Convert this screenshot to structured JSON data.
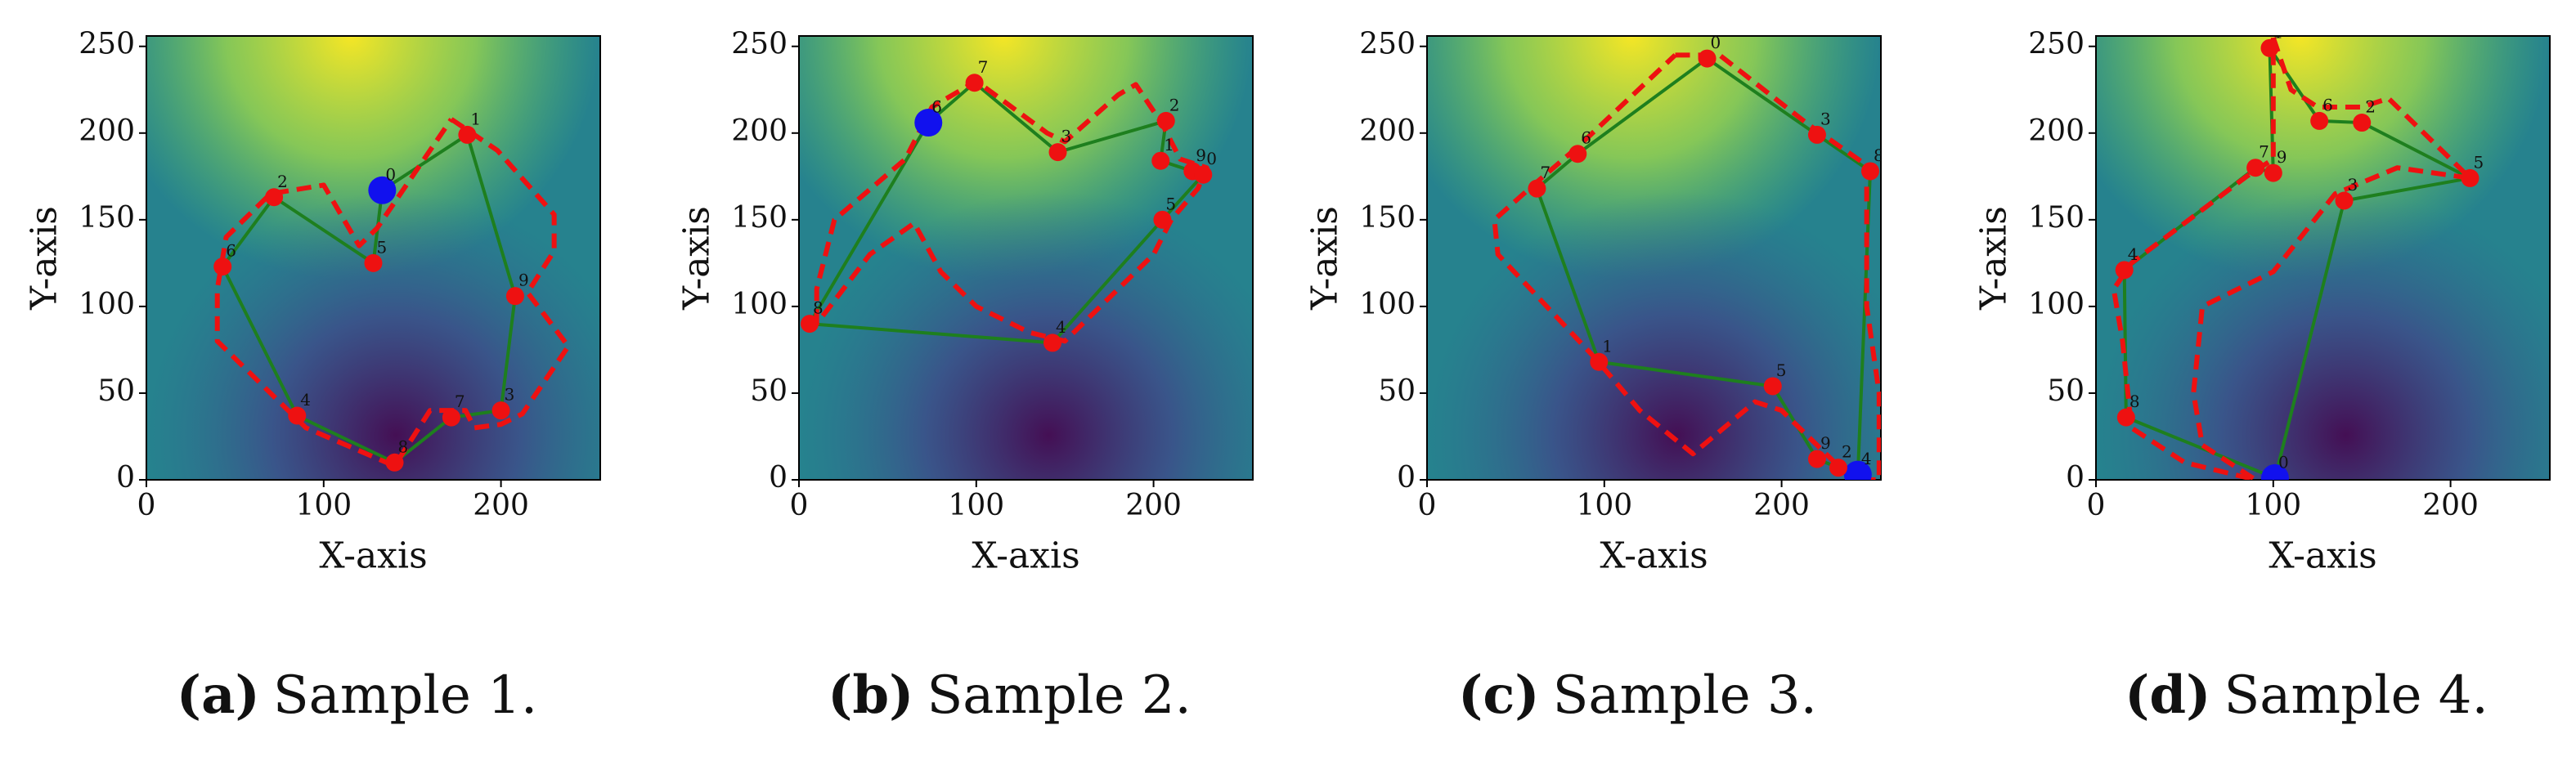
{
  "chart_data": [
    {
      "type": "scatter",
      "caption_label": "(a)",
      "caption": "Sample 1.",
      "xlabel": "X-axis",
      "ylabel": "Y-axis",
      "xlim": [
        0,
        256
      ],
      "ylim": [
        0,
        256
      ],
      "xticks": [
        0,
        100,
        200
      ],
      "yticks": [
        0,
        50,
        100,
        150,
        200,
        250
      ],
      "points": {
        "color": "#ee1111",
        "start_color": "#1111ee",
        "x": [
          133,
          128,
          72,
          43,
          85,
          140,
          172,
          200,
          208,
          181
        ],
        "y": [
          167,
          125,
          163,
          123,
          37,
          10,
          36,
          40,
          106,
          199
        ],
        "labels": [
          "0",
          "5",
          "2",
          "6",
          "4",
          "8",
          "7",
          "3",
          "9",
          "1"
        ]
      },
      "tour": {
        "color": "#1e7f1e",
        "closed": true
      },
      "route": {
        "color": "#ee1111",
        "dashed": true,
        "x": [
          172,
          198,
          230,
          230,
          215,
          238,
          212,
          200,
          185,
          180,
          160,
          140,
          90,
          40,
          40,
          45,
          70,
          100,
          120,
          130,
          172
        ],
        "y": [
          208,
          190,
          153,
          132,
          108,
          77,
          38,
          32,
          30,
          40,
          40,
          8,
          30,
          80,
          110,
          140,
          165,
          170,
          135,
          145,
          208
        ]
      }
    },
    {
      "type": "scatter",
      "caption_label": "(b)",
      "caption": "Sample 2.",
      "xlabel": "X-axis",
      "ylabel": "Y-axis",
      "xlim": [
        0,
        256
      ],
      "ylim": [
        0,
        256
      ],
      "xticks": [
        0,
        100,
        200
      ],
      "yticks": [
        0,
        50,
        100,
        150,
        200,
        250
      ],
      "points": {
        "color": "#ee1111",
        "start_color": "#1111ee",
        "x": [
          73,
          99,
          146,
          207,
          204,
          222,
          228,
          205,
          143,
          6
        ],
        "y": [
          206,
          229,
          189,
          207,
          184,
          178,
          176,
          150,
          79,
          90
        ],
        "labels": [
          "6",
          "7",
          "3",
          "2",
          "1",
          "9",
          "0",
          "5",
          "4",
          "8"
        ]
      },
      "tour": {
        "color": "#1e7f1e",
        "closed": true
      },
      "route": {
        "color": "#ee1111",
        "dashed": true,
        "x": [
          10,
          10,
          15,
          20,
          60,
          75,
          100,
          140,
          150,
          180,
          190,
          205,
          215,
          230,
          225,
          210,
          200,
          150,
          130,
          100,
          80,
          65,
          40,
          10
        ],
        "y": [
          90,
          110,
          130,
          150,
          185,
          215,
          230,
          200,
          195,
          222,
          228,
          205,
          185,
          180,
          168,
          150,
          130,
          80,
          85,
          100,
          120,
          148,
          130,
          90
        ]
      }
    },
    {
      "type": "scatter",
      "caption_label": "(c)",
      "caption": "Sample 3.",
      "xlabel": "X-axis",
      "ylabel": "Y-axis",
      "xlim": [
        0,
        256
      ],
      "ylim": [
        0,
        256
      ],
      "xticks": [
        0,
        100,
        200
      ],
      "yticks": [
        0,
        50,
        100,
        150,
        200,
        250
      ],
      "points": {
        "color": "#ee1111",
        "start_color": "#1111ee",
        "x": [
          243,
          250,
          220,
          158,
          85,
          62,
          97,
          195,
          220,
          232
        ],
        "y": [
          3,
          178,
          199,
          243,
          188,
          168,
          68,
          54,
          12,
          7
        ],
        "labels": [
          "4",
          "8",
          "3",
          "0",
          "6",
          "7",
          "1",
          "5",
          "9",
          "2"
        ]
      },
      "tour": {
        "color": "#1e7f1e",
        "closed": true
      },
      "route": {
        "color": "#ee1111",
        "dashed": true,
        "x": [
          140,
          165,
          215,
          250,
          248,
          248,
          255,
          255,
          240,
          200,
          185,
          150,
          120,
          95,
          40,
          38,
          60,
          85,
          140
        ],
        "y": [
          245,
          245,
          205,
          180,
          170,
          100,
          50,
          0,
          0,
          40,
          45,
          15,
          40,
          70,
          130,
          150,
          170,
          192,
          245
        ]
      }
    },
    {
      "type": "scatter",
      "caption_label": "(d)",
      "caption": "Sample 4.",
      "xlabel": "X-axis",
      "ylabel": "Y-axis",
      "xlim": [
        0,
        256
      ],
      "ylim": [
        0,
        256
      ],
      "xticks": [
        0,
        100,
        200
      ],
      "yticks": [
        0,
        50,
        100,
        150,
        200,
        250
      ],
      "points": {
        "color": "#ee1111",
        "start_color": "#1111ee",
        "x": [
          101,
          140,
          211,
          150,
          126,
          98,
          100,
          90,
          16,
          17
        ],
        "y": [
          1,
          161,
          174,
          206,
          207,
          249,
          177,
          180,
          121,
          36
        ],
        "labels": [
          "0",
          "3",
          "5",
          "2",
          "6",
          "1",
          "9",
          "7",
          "4",
          "8"
        ]
      },
      "tour": {
        "color": "#1e7f1e",
        "closed": true
      },
      "route": {
        "color": "#ee1111",
        "dashed": true,
        "x": [
          100,
          110,
          125,
          150,
          165,
          180,
          211,
          170,
          135,
          100,
          60,
          55,
          60,
          90,
          50,
          20,
          15,
          10,
          20,
          85,
          100,
          100,
          100
        ],
        "y": [
          255,
          225,
          215,
          215,
          220,
          205,
          174,
          180,
          165,
          120,
          100,
          50,
          20,
          0,
          10,
          30,
          80,
          110,
          125,
          175,
          185,
          215,
          255
        ]
      }
    }
  ]
}
